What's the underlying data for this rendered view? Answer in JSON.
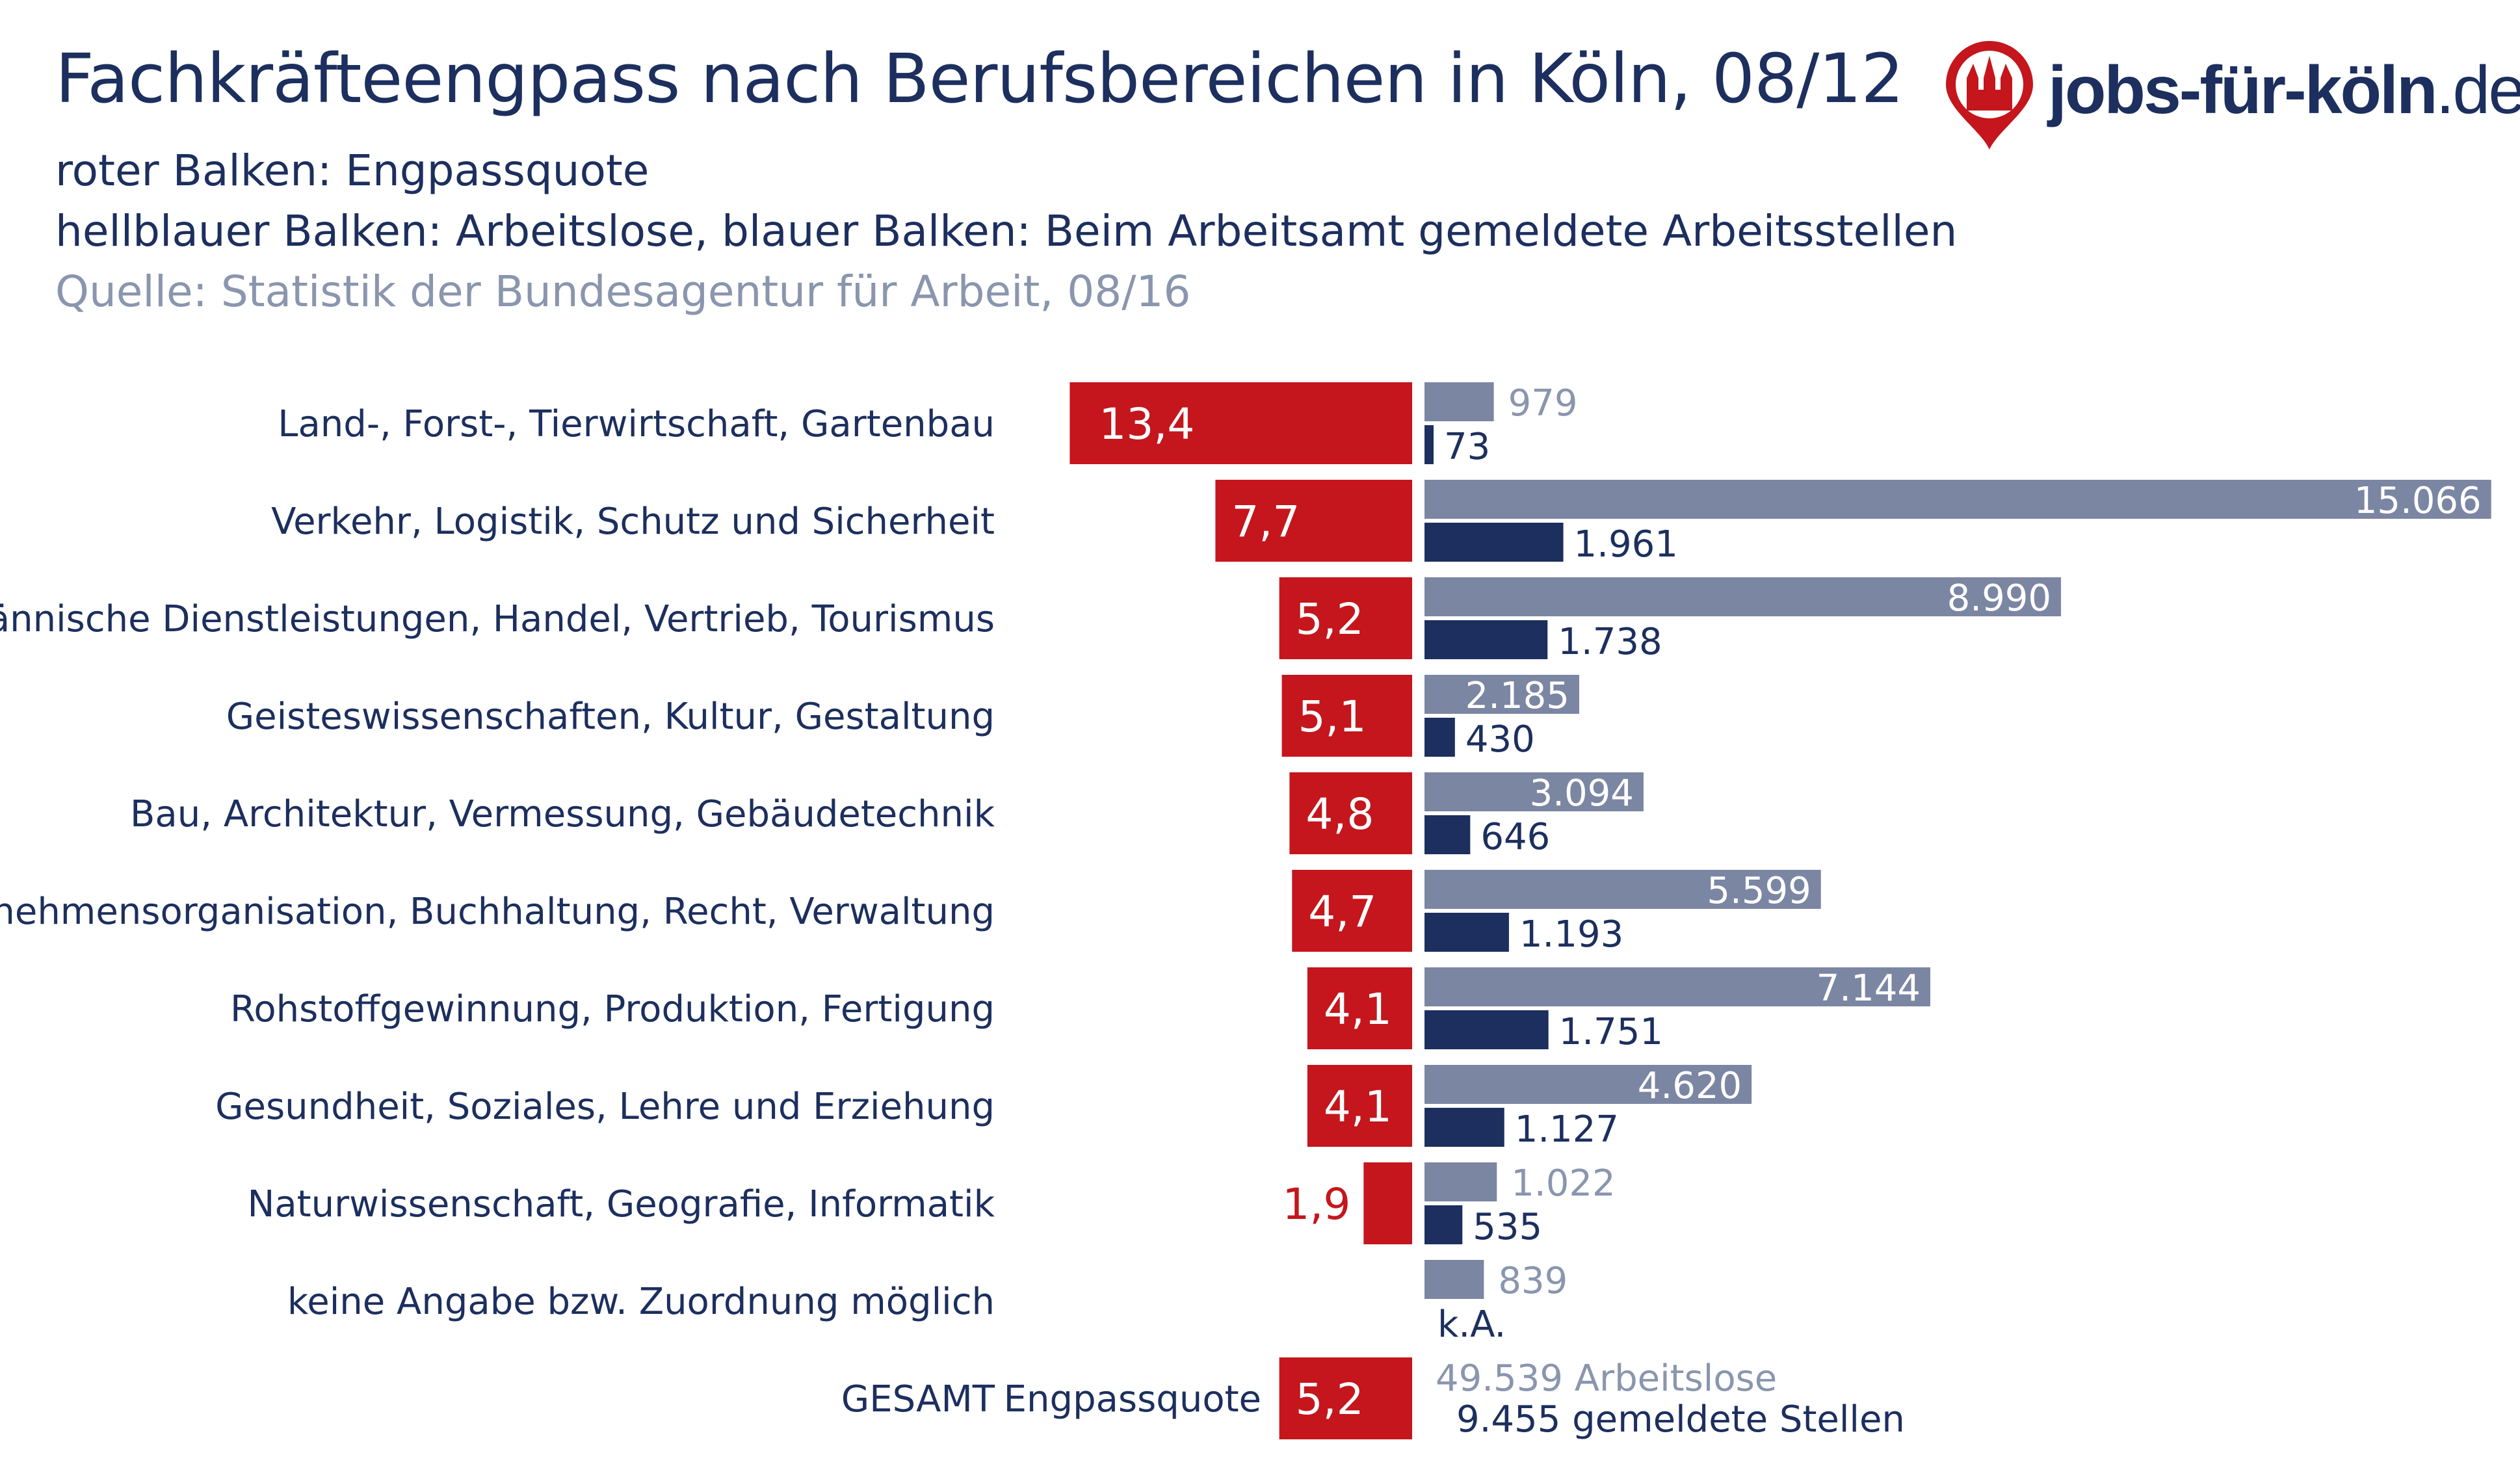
{
  "title": "Fachkräfteengpass nach Berufsbereichen in Köln, 08/12",
  "subtitle_1": "roter Balken: Engpassquote",
  "subtitle_2": "hellblauer Balken: Arbeitslose, blauer Balken: Beim Arbeitsamt gemeldete Arbeitsstellen",
  "source": "Quelle: Statistik der Bundesagentur für Arbeit, 08/16",
  "logo": {
    "text": "jobs-für-köln",
    "tld": ".de",
    "icon": "cologne-cathedral-pin-icon"
  },
  "colors": {
    "ratio": "#c4161c",
    "unemployed": "#7b86a3",
    "jobs": "#1c2f5e",
    "text": "#1c2f5e",
    "muted": "#8a96ae"
  },
  "chart_data": {
    "type": "bar",
    "categories": [
      "Land-, Forst-, Tierwirtschaft, Gartenbau",
      "Verkehr, Logistik, Schutz und Sicherheit",
      "Kaufmännische Dienstleistungen, Handel, Vertrieb, Tourismus",
      "Geisteswissenschaften, Kultur, Gestaltung",
      "Bau, Architektur, Vermessung, Gebäudetechnik",
      "Unternehmensorganisation, Buchhaltung, Recht, Verwaltung",
      "Rohstoffgewinnung, Produktion, Fertigung",
      "Gesundheit, Soziales, Lehre und Erziehung",
      "Naturwissenschaft, Geografie, Informatik",
      "keine Angabe bzw. Zuordnung möglich"
    ],
    "series": [
      {
        "key": "ratio",
        "values": [
          13.4,
          7.7,
          5.2,
          5.1,
          4.8,
          4.7,
          4.1,
          4.1,
          1.9,
          null
        ],
        "labels": [
          "13,4",
          "7,7",
          "5,2",
          "5,1",
          "4,8",
          "4,7",
          "4,1",
          "4,1",
          "1,9",
          ""
        ]
      },
      {
        "key": "unemployed",
        "values": [
          979,
          15066,
          8990,
          2185,
          3094,
          5599,
          7144,
          4620,
          1022,
          839
        ],
        "labels": [
          "979",
          "15.066",
          "8.990",
          "2.185",
          "3.094",
          "5.599",
          "7.144",
          "4.620",
          "1.022",
          "839"
        ]
      },
      {
        "key": "jobs",
        "values": [
          73,
          1961,
          1738,
          430,
          646,
          1193,
          1751,
          1127,
          535,
          null
        ],
        "labels": [
          "73",
          "1.961",
          "1.738",
          "430",
          "646",
          "1.193",
          "1.751",
          "1.127",
          "535",
          "k.A."
        ]
      }
    ],
    "total": {
      "label": "GESAMT",
      "ratio_caption": "Engpassquote",
      "ratio": 5.2,
      "ratio_label": "5,2",
      "unemployed": 49539,
      "unemployed_label": "49.539 Arbeitslose",
      "jobs": 9455,
      "jobs_label": "9.455 gemeldete Stellen"
    }
  }
}
